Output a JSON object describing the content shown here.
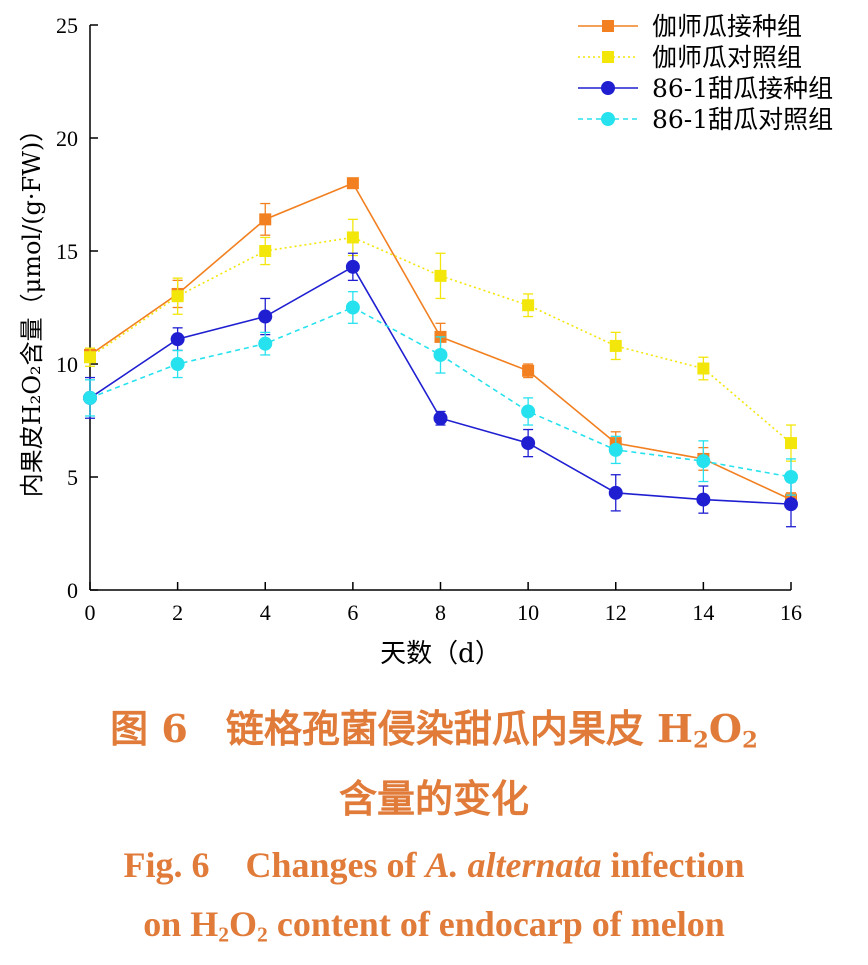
{
  "colors": {
    "caption": "#e07b3a",
    "axis": "#000000",
    "series": [
      "#f28020",
      "#f2e60a",
      "#1f1fd1",
      "#26e2ee"
    ]
  },
  "chart_data": {
    "type": "line",
    "xlabel": "天数（d）",
    "ylabel": "内果皮H₂O₂含量（μmol/(g·FW)）",
    "xlim": [
      0,
      16
    ],
    "ylim": [
      0,
      25
    ],
    "xticks": [
      "0",
      "2",
      "4",
      "6",
      "8",
      "10",
      "12",
      "14",
      "16"
    ],
    "yticks": [
      "0",
      "5",
      "10",
      "15",
      "20",
      "25"
    ],
    "grid": false,
    "legend_position": "top-right",
    "x": [
      0,
      2,
      4,
      6,
      8,
      10,
      12,
      14,
      16
    ],
    "series": [
      {
        "name": "伽师瓜接种组",
        "marker": "square",
        "style": "solid",
        "color": "#f28020",
        "values": [
          10.4,
          13.1,
          16.4,
          18.0,
          11.2,
          9.7,
          6.5,
          5.8,
          4.0
        ],
        "errors": [
          0.3,
          0.6,
          0.7,
          0.2,
          0.6,
          0.3,
          0.5,
          0.5,
          0.3
        ]
      },
      {
        "name": "伽师瓜对照组",
        "marker": "square",
        "style": "dotted",
        "color": "#f2e60a",
        "values": [
          10.3,
          13.0,
          15.0,
          15.6,
          13.9,
          12.6,
          10.8,
          9.8,
          6.5
        ],
        "errors": [
          0.4,
          0.8,
          0.6,
          0.8,
          1.0,
          0.5,
          0.6,
          0.5,
          0.8
        ]
      },
      {
        "name": "86-1甜瓜接种组",
        "marker": "circle",
        "style": "solid",
        "color": "#1f1fd1",
        "values": [
          8.5,
          11.1,
          12.1,
          14.3,
          7.6,
          6.5,
          4.3,
          4.0,
          3.8
        ],
        "errors": [
          0.9,
          0.5,
          0.8,
          0.6,
          0.3,
          0.6,
          0.8,
          0.6,
          1.0
        ]
      },
      {
        "name": "86-1甜瓜对照组",
        "marker": "circle",
        "style": "dashed",
        "color": "#26e2ee",
        "values": [
          8.5,
          10.0,
          10.9,
          12.5,
          10.4,
          7.9,
          6.2,
          5.7,
          5.0
        ],
        "errors": [
          0.8,
          0.6,
          0.5,
          0.7,
          0.8,
          0.6,
          0.6,
          0.9,
          0.8
        ]
      }
    ]
  },
  "caption": {
    "zh_line1_prefix": "图 6　链格孢菌侵染甜瓜内果皮 H",
    "zh_sub1": "2",
    "zh_mid": "O",
    "zh_sub2": "2",
    "zh_line2": "含量的变化",
    "en_line1_a": "Fig. 6　Changes of ",
    "en_line1_italic": "A. alternata",
    "en_line1_b": " infection",
    "en_line2_a": "on H",
    "en_sub1": "2",
    "en_mid": "O",
    "en_sub2": "2",
    "en_line2_b": " content of endocarp of melon"
  }
}
